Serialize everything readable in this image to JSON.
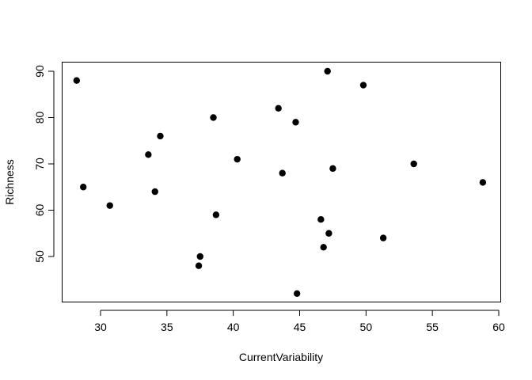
{
  "chart_data": {
    "type": "scatter",
    "title": "",
    "xlabel": "CurrentVariability",
    "ylabel": "Richness",
    "xlim": [
      27,
      60
    ],
    "ylim": [
      42,
      90
    ],
    "x_ticks": [
      30,
      35,
      40,
      45,
      50,
      55,
      60
    ],
    "y_ticks": [
      50,
      60,
      70,
      80,
      90
    ],
    "grid": false,
    "legend": "none",
    "marker_color": "#000000",
    "points": [
      {
        "x": 28.2,
        "y": 88
      },
      {
        "x": 28.7,
        "y": 65
      },
      {
        "x": 30.7,
        "y": 61
      },
      {
        "x": 33.6,
        "y": 72
      },
      {
        "x": 34.1,
        "y": 64
      },
      {
        "x": 34.5,
        "y": 76
      },
      {
        "x": 37.4,
        "y": 48
      },
      {
        "x": 37.5,
        "y": 50
      },
      {
        "x": 38.5,
        "y": 80
      },
      {
        "x": 38.7,
        "y": 59
      },
      {
        "x": 40.3,
        "y": 71
      },
      {
        "x": 43.4,
        "y": 82
      },
      {
        "x": 43.7,
        "y": 68
      },
      {
        "x": 44.7,
        "y": 79
      },
      {
        "x": 44.8,
        "y": 42
      },
      {
        "x": 46.6,
        "y": 58
      },
      {
        "x": 46.8,
        "y": 52
      },
      {
        "x": 47.1,
        "y": 90
      },
      {
        "x": 47.2,
        "y": 55
      },
      {
        "x": 47.5,
        "y": 69
      },
      {
        "x": 49.8,
        "y": 87
      },
      {
        "x": 51.3,
        "y": 54
      },
      {
        "x": 53.6,
        "y": 70
      },
      {
        "x": 58.8,
        "y": 66
      }
    ]
  }
}
